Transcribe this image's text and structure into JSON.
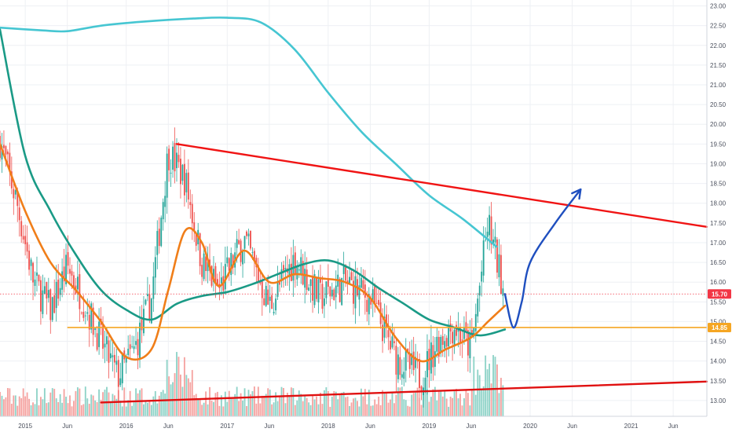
{
  "chart_data": {
    "type": "candlestick",
    "y_axis": {
      "position": "right",
      "range": [
        12.6,
        23.15
      ],
      "ticks": [
        "13.00",
        "13.50",
        "14.00",
        "14.50",
        "15.00",
        "15.50",
        "16.00",
        "16.50",
        "17.00",
        "17.50",
        "18.00",
        "18.50",
        "19.00",
        "19.50",
        "20.00",
        "20.50",
        "21.00",
        "21.50",
        "22.00",
        "22.50",
        "23.00"
      ]
    },
    "x_axis": {
      "range": [
        "2014-10",
        "2021-10"
      ],
      "ticks": [
        {
          "label": "2015",
          "date": "2015-01"
        },
        {
          "label": "Jun",
          "date": "2015-06"
        },
        {
          "label": "2016",
          "date": "2016-01"
        },
        {
          "label": "Jun",
          "date": "2016-06"
        },
        {
          "label": "2017",
          "date": "2017-01"
        },
        {
          "label": "Jun",
          "date": "2017-06"
        },
        {
          "label": "2018",
          "date": "2018-01"
        },
        {
          "label": "Jun",
          "date": "2018-06"
        },
        {
          "label": "2019",
          "date": "2019-01"
        },
        {
          "label": "Jun",
          "date": "2019-06"
        },
        {
          "label": "2020",
          "date": "2020-01"
        },
        {
          "label": "Jun",
          "date": "2020-06"
        },
        {
          "label": "2021",
          "date": "2021-01"
        },
        {
          "label": "Jun",
          "date": "2021-06"
        }
      ]
    },
    "grid": true,
    "price_badges": [
      {
        "label": "15.70",
        "value": 15.7,
        "color": "#f23645"
      },
      {
        "label": "14.85",
        "value": 14.85,
        "color": "#f5a623"
      }
    ],
    "horizontal_lines": [
      {
        "name": "support",
        "value": 14.85,
        "from": "2015-06",
        "color": "#f5a623"
      },
      {
        "name": "last-price",
        "value": 15.7,
        "from": "2014-10",
        "color": "#f23645",
        "dotted": true
      }
    ],
    "trendlines": [
      {
        "name": "upper-trendline",
        "from": {
          "date": "2016-07",
          "value": 19.5
        },
        "to": {
          "date": "2021-10",
          "value": 17.4
        },
        "color": "#f01414"
      },
      {
        "name": "lower-trendline",
        "from": {
          "date": "2015-10",
          "value": 12.95
        },
        "to": {
          "date": "2021-10",
          "value": 13.48
        },
        "color": "#e01010"
      }
    ],
    "projection": {
      "color": "#1f4fbf",
      "points": [
        {
          "date": "2019-10",
          "value": 15.7
        },
        {
          "date": "2019-11",
          "value": 14.85
        },
        {
          "date": "2019-12",
          "value": 15.5
        },
        {
          "date": "2020-01",
          "value": 16.5
        },
        {
          "date": "2020-04",
          "value": 17.5
        },
        {
          "date": "2020-07",
          "value": 18.35
        }
      ]
    },
    "moving_averages": [
      {
        "name": "long-ma",
        "color": "#46c6d2",
        "points": [
          {
            "date": "2014-10",
            "value": 22.45
          },
          {
            "date": "2015-03",
            "value": 22.38
          },
          {
            "date": "2015-06",
            "value": 22.36
          },
          {
            "date": "2015-10",
            "value": 22.5
          },
          {
            "date": "2016-03",
            "value": 22.6
          },
          {
            "date": "2016-09",
            "value": 22.68
          },
          {
            "date": "2017-01",
            "value": 22.7
          },
          {
            "date": "2017-05",
            "value": 22.58
          },
          {
            "date": "2017-09",
            "value": 21.9
          },
          {
            "date": "2018-01",
            "value": 20.8
          },
          {
            "date": "2018-05",
            "value": 19.8
          },
          {
            "date": "2018-09",
            "value": 19.0
          },
          {
            "date": "2019-01",
            "value": 18.2
          },
          {
            "date": "2019-05",
            "value": 17.6
          },
          {
            "date": "2019-09",
            "value": 16.9
          }
        ]
      },
      {
        "name": "mid-ma",
        "color": "#1a9a86",
        "points": [
          {
            "date": "2014-10",
            "value": 22.4
          },
          {
            "date": "2015-01",
            "value": 19.2
          },
          {
            "date": "2015-04",
            "value": 17.8
          },
          {
            "date": "2015-07",
            "value": 16.7
          },
          {
            "date": "2015-10",
            "value": 15.8
          },
          {
            "date": "2016-01",
            "value": 15.3
          },
          {
            "date": "2016-04",
            "value": 15.05
          },
          {
            "date": "2016-07",
            "value": 15.45
          },
          {
            "date": "2016-10",
            "value": 15.65
          },
          {
            "date": "2017-01",
            "value": 15.75
          },
          {
            "date": "2017-04",
            "value": 15.95
          },
          {
            "date": "2017-07",
            "value": 16.2
          },
          {
            "date": "2017-10",
            "value": 16.45
          },
          {
            "date": "2018-01",
            "value": 16.55
          },
          {
            "date": "2018-04",
            "value": 16.3
          },
          {
            "date": "2018-07",
            "value": 15.85
          },
          {
            "date": "2018-10",
            "value": 15.45
          },
          {
            "date": "2019-01",
            "value": 15.05
          },
          {
            "date": "2019-04",
            "value": 14.85
          },
          {
            "date": "2019-07",
            "value": 14.65
          },
          {
            "date": "2019-10",
            "value": 14.8
          }
        ]
      },
      {
        "name": "short-ma",
        "color": "#f07e19",
        "points": [
          {
            "date": "2014-10",
            "value": 19.5
          },
          {
            "date": "2015-01",
            "value": 17.8
          },
          {
            "date": "2015-04",
            "value": 16.5
          },
          {
            "date": "2015-07",
            "value": 15.8
          },
          {
            "date": "2015-10",
            "value": 15.0
          },
          {
            "date": "2016-01",
            "value": 14.1
          },
          {
            "date": "2016-04",
            "value": 14.3
          },
          {
            "date": "2016-06",
            "value": 15.8
          },
          {
            "date": "2016-08",
            "value": 17.3
          },
          {
            "date": "2016-10",
            "value": 17.0
          },
          {
            "date": "2016-12",
            "value": 15.9
          },
          {
            "date": "2017-03",
            "value": 16.8
          },
          {
            "date": "2017-06",
            "value": 16.0
          },
          {
            "date": "2017-09",
            "value": 16.2
          },
          {
            "date": "2017-12",
            "value": 16.1
          },
          {
            "date": "2018-03",
            "value": 16.0
          },
          {
            "date": "2018-06",
            "value": 15.6
          },
          {
            "date": "2018-09",
            "value": 14.6
          },
          {
            "date": "2018-12",
            "value": 14.0
          },
          {
            "date": "2019-03",
            "value": 14.3
          },
          {
            "date": "2019-06",
            "value": 14.6
          },
          {
            "date": "2019-08",
            "value": 15.0
          },
          {
            "date": "2019-10",
            "value": 15.4
          }
        ]
      }
    ],
    "candles": {
      "up_color": "#26a69a",
      "down_color": "#ef5350",
      "volume_up_color": "#8fd3c8",
      "volume_down_color": "#f5a3a1",
      "keypoints": [
        {
          "date": "2014-10",
          "value": 19.6
        },
        {
          "date": "2014-12",
          "value": 18.0
        },
        {
          "date": "2015-02",
          "value": 16.0
        },
        {
          "date": "2015-04",
          "value": 15.3
        },
        {
          "date": "2015-06",
          "value": 16.4
        },
        {
          "date": "2015-08",
          "value": 15.5
        },
        {
          "date": "2015-10",
          "value": 14.5
        },
        {
          "date": "2015-12",
          "value": 13.6
        },
        {
          "date": "2016-02",
          "value": 14.3
        },
        {
          "date": "2016-04",
          "value": 15.6
        },
        {
          "date": "2016-06",
          "value": 19.3
        },
        {
          "date": "2016-08",
          "value": 18.6
        },
        {
          "date": "2016-10",
          "value": 16.5
        },
        {
          "date": "2016-12",
          "value": 15.8
        },
        {
          "date": "2017-03",
          "value": 17.1
        },
        {
          "date": "2017-06",
          "value": 15.4
        },
        {
          "date": "2017-09",
          "value": 16.6
        },
        {
          "date": "2017-12",
          "value": 15.6
        },
        {
          "date": "2018-03",
          "value": 16.0
        },
        {
          "date": "2018-06",
          "value": 15.6
        },
        {
          "date": "2018-09",
          "value": 14.1
        },
        {
          "date": "2018-12",
          "value": 13.6
        },
        {
          "date": "2019-02",
          "value": 14.5
        },
        {
          "date": "2019-04",
          "value": 14.9
        },
        {
          "date": "2019-06",
          "value": 14.3
        },
        {
          "date": "2019-08",
          "value": 17.5
        },
        {
          "date": "2019-09",
          "value": 16.6
        },
        {
          "date": "2019-10",
          "value": 15.7
        }
      ]
    }
  }
}
